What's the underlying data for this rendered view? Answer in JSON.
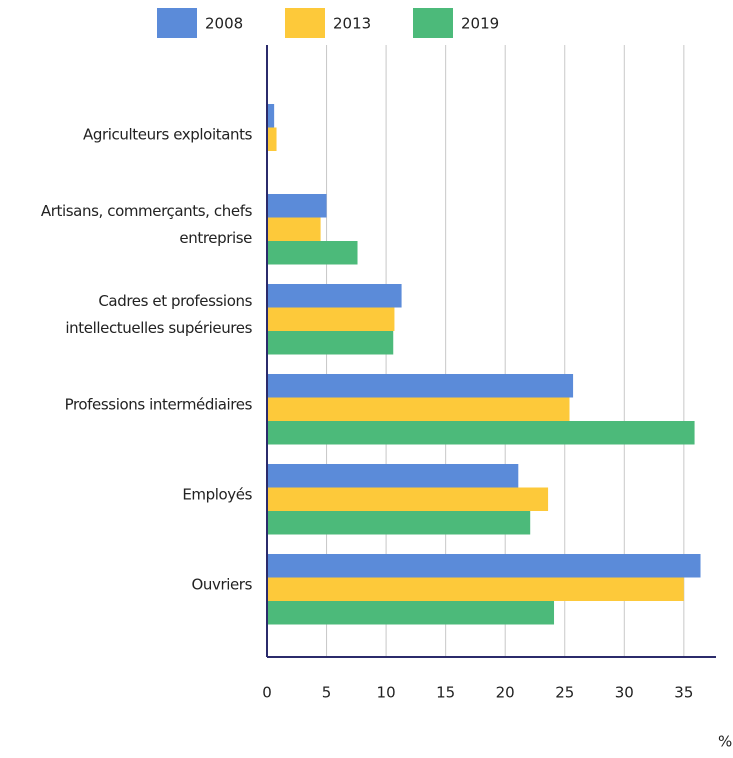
{
  "chart_data": {
    "type": "hbar",
    "categories": [
      "Agriculteurs exploitants",
      "Artisans, commerçants, chefs entreprise",
      "Cadres et professions intellectuelles supérieures",
      "Professions intermédiaires",
      "Employés",
      "Ouvriers"
    ],
    "series": [
      {
        "name": "2008",
        "color": "#5b8bd9",
        "values": [
          0.6,
          5.0,
          11.3,
          25.7,
          21.1,
          36.4
        ]
      },
      {
        "name": "2013",
        "color": "#fdc93a",
        "values": [
          0.8,
          4.5,
          10.7,
          25.4,
          23.6,
          35.0
        ]
      },
      {
        "name": "2019",
        "color": "#4cba7a",
        "values": [
          null,
          7.6,
          10.6,
          35.9,
          22.1,
          24.1
        ]
      }
    ],
    "xlabel": "%",
    "xlim": [
      0,
      37.7
    ],
    "xticks": [
      0,
      5,
      10,
      15,
      20,
      25,
      30,
      35
    ],
    "grid": true,
    "legend": "top"
  }
}
